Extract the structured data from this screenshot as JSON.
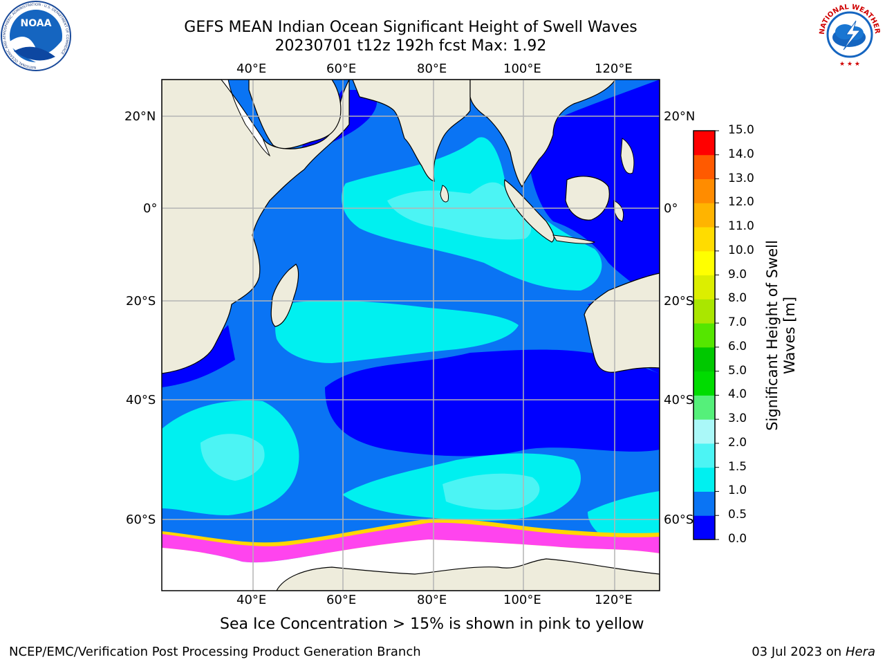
{
  "title": {
    "line1": "GEFS MEAN Indian Ocean Significant Height of Swell Waves",
    "line2": "20230701 t12z 192h fcst   Max: 1.92"
  },
  "logos": {
    "noaa": {
      "text": "NOAA",
      "ring_text": "NATIONAL OCEANIC AND ATMOSPHERIC ADMINISTRATION · U.S. DEPARTMENT OF COMMERCE"
    },
    "nws": {
      "ring_text": "NATIONAL WEATHER SERVICE"
    }
  },
  "map": {
    "lon_labels": [
      "40°E",
      "60°E",
      "80°E",
      "100°E",
      "120°E"
    ],
    "lat_labels": [
      "20°N",
      "0°",
      "20°S",
      "40°S",
      "60°S"
    ],
    "lon_range": [
      20,
      130
    ],
    "lat_range": [
      -72,
      28
    ],
    "colors": {
      "land": "#eeecdc",
      "very_low": "#0000ff",
      "low": "#0a74f4",
      "mid": "#00f0f0",
      "mid_high": "#4cf4f4",
      "ice_pink": "#ff44ee",
      "ice_yellow": "#ffd700",
      "grid": "#b4b4b4"
    }
  },
  "colorbar": {
    "title_line1": "Significant Height of Swell",
    "title_line2": "Waves [m]",
    "levels": [
      "0.0",
      "0.5",
      "1.0",
      "1.5",
      "2.0",
      "3.0",
      "4.0",
      "5.0",
      "6.0",
      "7.0",
      "8.0",
      "9.0",
      "10.0",
      "11.0",
      "12.0",
      "13.0",
      "14.0",
      "15.0"
    ],
    "colors": [
      "#0000ff",
      "#0a74f4",
      "#00f0f0",
      "#4cf4f4",
      "#aaf8f8",
      "#55f07a",
      "#00dc00",
      "#00c800",
      "#55e600",
      "#aae600",
      "#dcee00",
      "#ffff00",
      "#ffdc00",
      "#ffb400",
      "#ff8c00",
      "#ff5a00",
      "#ff0000"
    ]
  },
  "note": "Sea Ice Concentration > 15% is shown in pink to yellow",
  "footer": {
    "left": "NCEP/EMC/Verification Post Processing Product Generation Branch",
    "date": "03 Jul 2023 on ",
    "machine": "Hera"
  }
}
